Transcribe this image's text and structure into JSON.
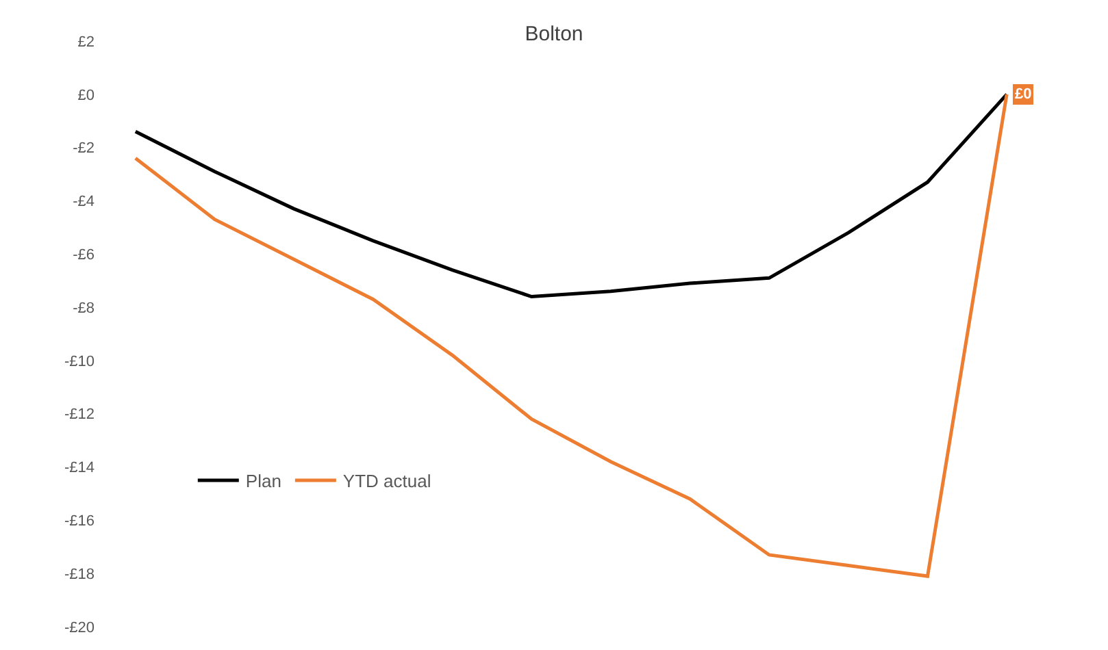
{
  "chart_data": {
    "type": "line",
    "title": "Bolton",
    "categories": [
      null,
      null,
      null,
      null,
      null,
      null,
      null,
      null,
      null,
      null,
      null,
      null
    ],
    "series": [
      {
        "name": "Plan",
        "color": "#000000",
        "values": [
          -1.4,
          -2.9,
          -4.3,
          -5.5,
          -6.6,
          -7.6,
          -7.4,
          -7.1,
          -6.9,
          -5.2,
          -3.3,
          0
        ]
      },
      {
        "name": "YTD actual",
        "color": "#ed7d31",
        "values": [
          -2.4,
          -4.7,
          -6.2,
          -7.7,
          -9.8,
          -12.2,
          -13.8,
          -15.2,
          -17.3,
          -17.7,
          -18.1,
          0
        ],
        "value_labels": [
          null,
          null,
          null,
          null,
          null,
          null,
          null,
          null,
          null,
          null,
          null,
          "£0"
        ]
      }
    ],
    "ylim": [
      -20,
      2
    ],
    "yticks": [
      {
        "value": 2,
        "label": "£2"
      },
      {
        "value": 0,
        "label": "£0"
      },
      {
        "value": -2,
        "label": "-£2"
      },
      {
        "value": -4,
        "label": "-£4"
      },
      {
        "value": -6,
        "label": "-£6"
      },
      {
        "value": -8,
        "label": "-£8"
      },
      {
        "value": -10,
        "label": "-£10"
      },
      {
        "value": -12,
        "label": "-£12"
      },
      {
        "value": -14,
        "label": "-£14"
      },
      {
        "value": -16,
        "label": "-£16"
      },
      {
        "value": -18,
        "label": "-£18"
      },
      {
        "value": -20,
        "label": "-£20"
      }
    ],
    "legend": "bottom left",
    "marker": "none",
    "line_style": "solid"
  }
}
